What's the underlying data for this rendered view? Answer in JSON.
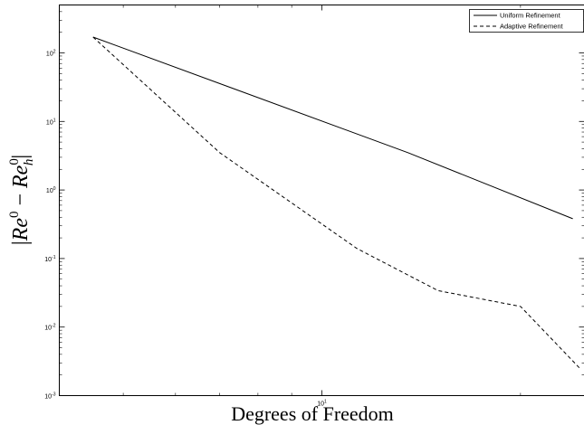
{
  "chart_data": {
    "type": "line",
    "title": "",
    "xlabel": "Degrees of Freedom",
    "ylabel": "|Re^0 − Re_h^0|",
    "ylabel_parts": {
      "bar_left": "|",
      "re": "Re",
      "sup": "0",
      "minus": "−",
      "re2": "Re",
      "sub": "h",
      "sup2": "0",
      "bar_right": "|"
    },
    "x_scale": "log",
    "y_scale": "log",
    "xlim": [
      4,
      25
    ],
    "ylim": [
      0.001,
      500
    ],
    "x_ticks": [
      {
        "value": 10,
        "base": "10",
        "exp": "1"
      }
    ],
    "y_ticks": [
      {
        "value": 0.001,
        "base": "10",
        "exp": "-3"
      },
      {
        "value": 0.01,
        "base": "10",
        "exp": "-2"
      },
      {
        "value": 0.1,
        "base": "10",
        "exp": "-1"
      },
      {
        "value": 1,
        "base": "10",
        "exp": "0"
      },
      {
        "value": 10,
        "base": "10",
        "exp": "1"
      },
      {
        "value": 100,
        "base": "10",
        "exp": "2"
      }
    ],
    "grid": false,
    "legend": "top-right",
    "series": [
      {
        "name": "Uniform Refinement",
        "style": "solid",
        "color": "#000000",
        "x": [
          4.5,
          13.5,
          24.0
        ],
        "y": [
          170,
          3.5,
          0.38
        ]
      },
      {
        "name": "Adaptive Refinement",
        "style": "dashed",
        "color": "#000000",
        "x": [
          4.5,
          7.0,
          11.3,
          15.0,
          20.0,
          24.7
        ],
        "y": [
          170,
          3.5,
          0.14,
          0.034,
          0.02,
          0.0024
        ]
      }
    ]
  }
}
